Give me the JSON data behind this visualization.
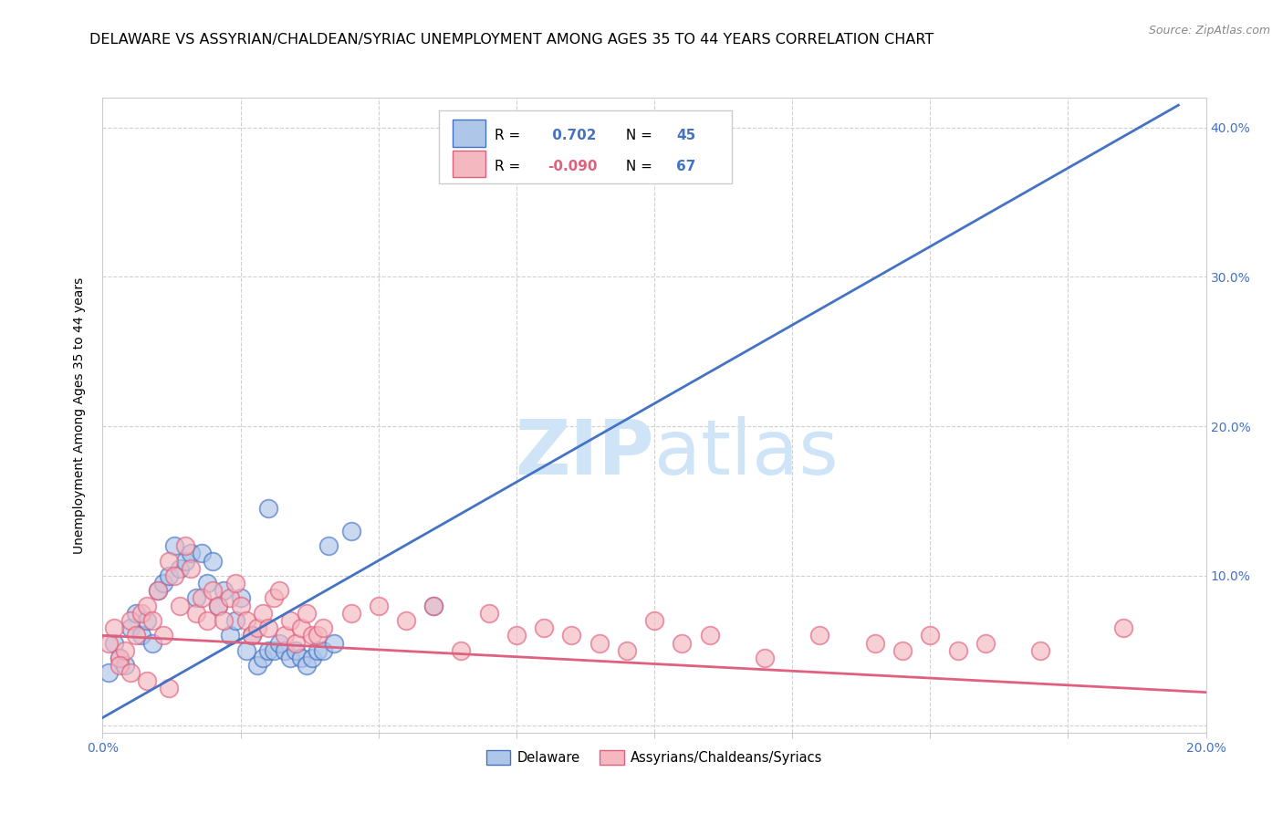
{
  "title": "DELAWARE VS ASSYRIAN/CHALDEAN/SYRIAC UNEMPLOYMENT AMONG AGES 35 TO 44 YEARS CORRELATION CHART",
  "source": "Source: ZipAtlas.com",
  "ylabel": "Unemployment Among Ages 35 to 44 years",
  "xlim": [
    0.0,
    0.2
  ],
  "ylim": [
    -0.005,
    0.42
  ],
  "blue_scatter_x": [
    0.001,
    0.002,
    0.003,
    0.004,
    0.005,
    0.006,
    0.007,
    0.008,
    0.009,
    0.01,
    0.011,
    0.012,
    0.013,
    0.014,
    0.015,
    0.016,
    0.017,
    0.018,
    0.019,
    0.02,
    0.021,
    0.022,
    0.023,
    0.024,
    0.025,
    0.026,
    0.027,
    0.028,
    0.029,
    0.03,
    0.031,
    0.032,
    0.033,
    0.034,
    0.035,
    0.036,
    0.037,
    0.038,
    0.039,
    0.04,
    0.041,
    0.042,
    0.045,
    0.06,
    0.03
  ],
  "blue_scatter_y": [
    0.035,
    0.055,
    0.045,
    0.04,
    0.065,
    0.075,
    0.06,
    0.07,
    0.055,
    0.09,
    0.095,
    0.1,
    0.12,
    0.105,
    0.11,
    0.115,
    0.085,
    0.115,
    0.095,
    0.11,
    0.08,
    0.09,
    0.06,
    0.07,
    0.085,
    0.05,
    0.06,
    0.04,
    0.045,
    0.05,
    0.05,
    0.055,
    0.05,
    0.045,
    0.05,
    0.045,
    0.04,
    0.045,
    0.05,
    0.05,
    0.12,
    0.055,
    0.13,
    0.08,
    0.145
  ],
  "pink_scatter_x": [
    0.001,
    0.002,
    0.003,
    0.004,
    0.005,
    0.006,
    0.007,
    0.008,
    0.009,
    0.01,
    0.011,
    0.012,
    0.013,
    0.014,
    0.015,
    0.016,
    0.017,
    0.018,
    0.019,
    0.02,
    0.021,
    0.022,
    0.023,
    0.024,
    0.025,
    0.026,
    0.027,
    0.028,
    0.029,
    0.03,
    0.031,
    0.032,
    0.033,
    0.034,
    0.035,
    0.036,
    0.037,
    0.038,
    0.039,
    0.04,
    0.045,
    0.05,
    0.055,
    0.06,
    0.065,
    0.07,
    0.075,
    0.08,
    0.085,
    0.09,
    0.095,
    0.1,
    0.105,
    0.11,
    0.12,
    0.13,
    0.14,
    0.145,
    0.15,
    0.155,
    0.16,
    0.17,
    0.185,
    0.003,
    0.005,
    0.008,
    0.012
  ],
  "pink_scatter_y": [
    0.055,
    0.065,
    0.045,
    0.05,
    0.07,
    0.06,
    0.075,
    0.08,
    0.07,
    0.09,
    0.06,
    0.11,
    0.1,
    0.08,
    0.12,
    0.105,
    0.075,
    0.085,
    0.07,
    0.09,
    0.08,
    0.07,
    0.085,
    0.095,
    0.08,
    0.07,
    0.06,
    0.065,
    0.075,
    0.065,
    0.085,
    0.09,
    0.06,
    0.07,
    0.055,
    0.065,
    0.075,
    0.06,
    0.06,
    0.065,
    0.075,
    0.08,
    0.07,
    0.08,
    0.05,
    0.075,
    0.06,
    0.065,
    0.06,
    0.055,
    0.05,
    0.07,
    0.055,
    0.06,
    0.045,
    0.06,
    0.055,
    0.05,
    0.06,
    0.05,
    0.055,
    0.05,
    0.065,
    0.04,
    0.035,
    0.03,
    0.025
  ],
  "blue_color": "#aec6e8",
  "blue_edge": "#4472c4",
  "pink_color": "#f4b8c1",
  "pink_edge": "#e0607e",
  "blue_line_color": "#4472c4",
  "pink_line_color": "#e06080",
  "blue_trend_x0": 0.0,
  "blue_trend_y0": 0.005,
  "blue_trend_x1": 0.195,
  "blue_trend_y1": 0.415,
  "pink_trend_x0": 0.0,
  "pink_trend_y0": 0.06,
  "pink_trend_x1": 0.2,
  "pink_trend_y1": 0.022,
  "watermark_zip": "ZIP",
  "watermark_atlas": "atlas",
  "watermark_color": "#d0e4f7",
  "background_color": "#ffffff",
  "grid_color": "#d0d0d0",
  "title_fontsize": 11.5,
  "tick_fontsize": 10,
  "source_fontsize": 9
}
